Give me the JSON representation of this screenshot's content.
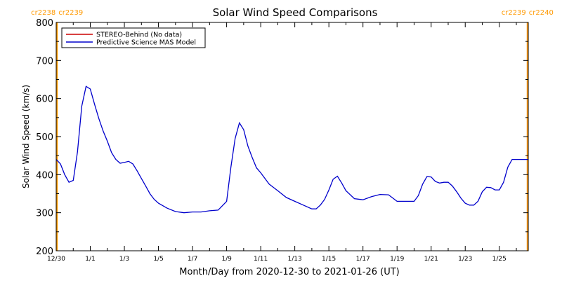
{
  "chart_data": {
    "type": "line",
    "title": "Solar Wind Speed Comparisons",
    "xlabel": "Month/Day from 2020-12-30 to 2021-01-26 (UT)",
    "ylabel": "Solar Wind Speed (km/s)",
    "ylim": [
      200,
      800
    ],
    "xlim_days": [
      0,
      27.7
    ],
    "y_ticks": [
      200,
      300,
      400,
      500,
      600,
      700,
      800
    ],
    "x_ticks": [
      {
        "day": 0,
        "label": "12/30"
      },
      {
        "day": 2,
        "label": "1/1"
      },
      {
        "day": 4,
        "label": "1/3"
      },
      {
        "day": 6,
        "label": "1/5"
      },
      {
        "day": 8,
        "label": "1/7"
      },
      {
        "day": 10,
        "label": "1/9"
      },
      {
        "day": 12,
        "label": "1/11"
      },
      {
        "day": 14,
        "label": "1/13"
      },
      {
        "day": 16,
        "label": "1/15"
      },
      {
        "day": 18,
        "label": "1/17"
      },
      {
        "day": 20,
        "label": "1/19"
      },
      {
        "day": 22,
        "label": "1/21"
      },
      {
        "day": 24,
        "label": "1/23"
      },
      {
        "day": 26,
        "label": "1/25"
      }
    ],
    "carrington_markers": [
      {
        "day": 0.05,
        "left_label": "cr2238",
        "right_label": "cr2239",
        "color": "#ff9900"
      },
      {
        "day": 27.65,
        "left_label": "cr2239",
        "right_label": "cr2240",
        "color": "#ff9900"
      }
    ],
    "legend": {
      "placement": "top-left",
      "entries": [
        {
          "name": "STEREO-Behind (No data)",
          "color": "#cc0000"
        },
        {
          "name": "Predictive Science MAS Model",
          "color": "#0000cc"
        }
      ]
    },
    "series": [
      {
        "name": "Predictive Science MAS Model",
        "color": "#0000cc",
        "x": [
          0.0,
          0.25,
          0.5,
          0.75,
          1.0,
          1.25,
          1.5,
          1.75,
          2.0,
          2.25,
          2.5,
          2.75,
          3.0,
          3.25,
          3.5,
          3.75,
          4.0,
          4.25,
          4.5,
          4.75,
          5.0,
          5.25,
          5.5,
          5.75,
          6.0,
          6.5,
          7.0,
          7.5,
          8.0,
          8.5,
          9.0,
          9.5,
          10.0,
          10.25,
          10.5,
          10.75,
          11.0,
          11.25,
          11.5,
          11.75,
          12.0,
          12.5,
          13.0,
          13.5,
          14.0,
          14.5,
          15.0,
          15.25,
          15.5,
          15.75,
          16.0,
          16.25,
          16.5,
          16.75,
          17.0,
          17.5,
          18.0,
          18.5,
          19.0,
          19.5,
          20.0,
          20.5,
          21.0,
          21.25,
          21.5,
          21.75,
          22.0,
          22.25,
          22.5,
          22.75,
          23.0,
          23.25,
          23.5,
          23.75,
          24.0,
          24.25,
          24.5,
          24.75,
          25.0,
          25.25,
          25.5,
          25.75,
          26.0,
          26.25,
          26.5,
          26.75,
          27.0,
          27.25,
          27.5,
          27.7
        ],
        "values": [
          440,
          428,
          400,
          380,
          385,
          460,
          580,
          632,
          625,
          585,
          548,
          515,
          488,
          458,
          440,
          430,
          432,
          435,
          428,
          410,
          390,
          370,
          350,
          335,
          325,
          312,
          303,
          300,
          302,
          302,
          305,
          307,
          330,
          420,
          495,
          536,
          518,
          475,
          445,
          418,
          405,
          375,
          358,
          340,
          330,
          320,
          310,
          310,
          320,
          335,
          360,
          388,
          396,
          378,
          358,
          337,
          334,
          342,
          348,
          347,
          330,
          330,
          330,
          345,
          375,
          395,
          394,
          382,
          378,
          380,
          380,
          370,
          355,
          338,
          325,
          320,
          320,
          330,
          355,
          367,
          366,
          360,
          360,
          380,
          420,
          440,
          440,
          440,
          440,
          440
        ]
      }
    ]
  }
}
